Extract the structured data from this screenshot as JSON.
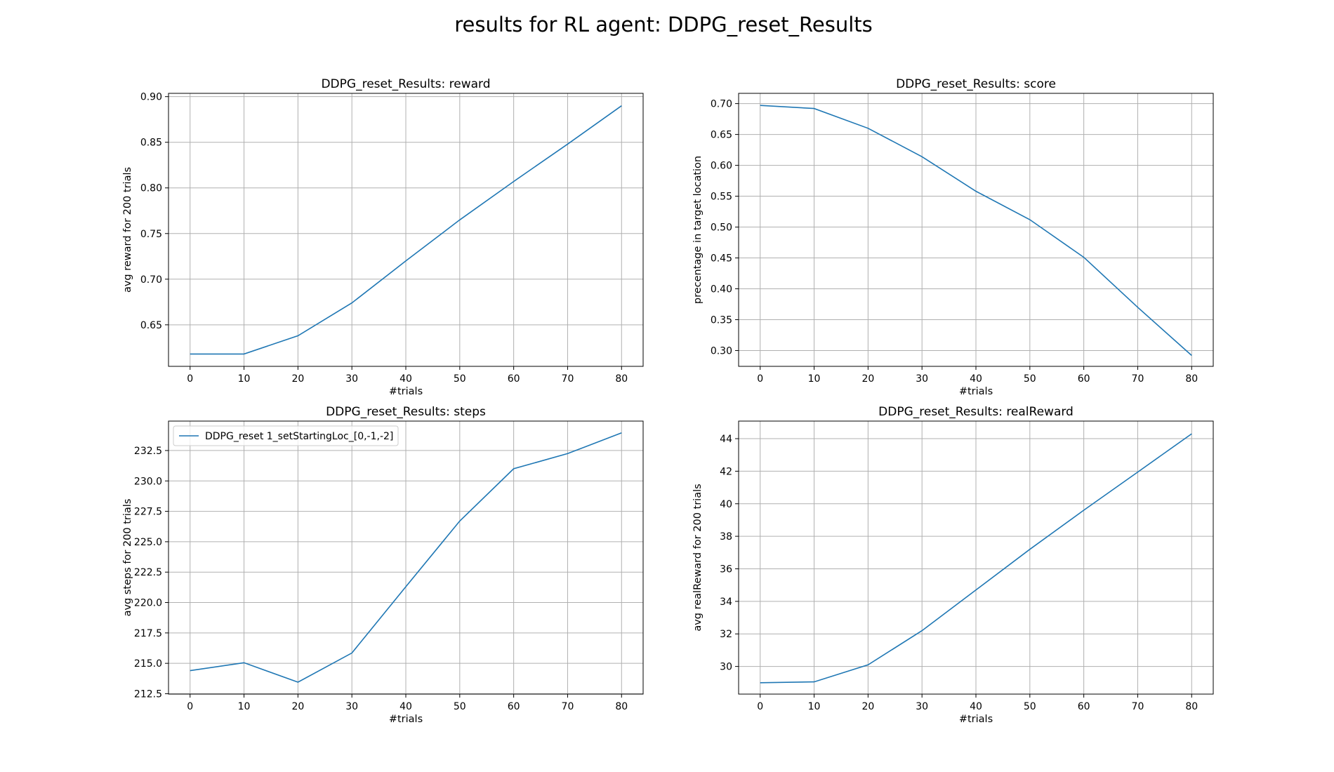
{
  "figure": {
    "suptitle": "results for RL agent: DDPG_reset_Results",
    "line_color": "#1f77b4",
    "grid_color": "#b0b0b0"
  },
  "chart_data": [
    {
      "type": "line",
      "title": "DDPG_reset_Results: reward",
      "xlabel": "#trials",
      "ylabel": "avg reward for 200 trials",
      "x": [
        0,
        10,
        20,
        30,
        40,
        50,
        60,
        70,
        80
      ],
      "series": [
        {
          "values": [
            0.618,
            0.618,
            0.638,
            0.674,
            0.72,
            0.765,
            0.807,
            0.848,
            0.89
          ]
        }
      ],
      "xticks": [
        "0",
        "10",
        "20",
        "30",
        "40",
        "50",
        "60",
        "70",
        "80"
      ],
      "yticks": [
        "0.65",
        "0.70",
        "0.75",
        "0.80",
        "0.85",
        "0.90"
      ],
      "xlim": [
        -4,
        84
      ],
      "ylim": [
        0.6045,
        0.9036
      ],
      "grid": true,
      "legend": null
    },
    {
      "type": "line",
      "title": "DDPG_reset_Results: score",
      "xlabel": "#trials",
      "ylabel": "precentage in target location",
      "x": [
        0,
        10,
        20,
        30,
        40,
        50,
        60,
        70,
        80
      ],
      "series": [
        {
          "values": [
            0.697,
            0.692,
            0.66,
            0.614,
            0.558,
            0.512,
            0.451,
            0.37,
            0.292
          ]
        }
      ],
      "xticks": [
        "0",
        "10",
        "20",
        "30",
        "40",
        "50",
        "60",
        "70",
        "80"
      ],
      "yticks": [
        "0.30",
        "0.35",
        "0.40",
        "0.45",
        "0.50",
        "0.55",
        "0.60",
        "0.65",
        "0.70"
      ],
      "xlim": [
        -4,
        84
      ],
      "ylim": [
        0.2744,
        0.7166
      ],
      "grid": true,
      "legend": null
    },
    {
      "type": "line",
      "title": "DDPG_reset_Results: steps",
      "xlabel": "#trials",
      "ylabel": "avg steps for 200 trials",
      "x": [
        0,
        10,
        20,
        30,
        40,
        50,
        60,
        70,
        80
      ],
      "series": [
        {
          "name": "DDPG_reset 1_setStartingLoc_[0,-1,-2]",
          "values": [
            214.4,
            215.05,
            213.45,
            215.85,
            221.3,
            226.7,
            231.0,
            232.25,
            233.95
          ]
        }
      ],
      "xticks": [
        "0",
        "10",
        "20",
        "30",
        "40",
        "50",
        "60",
        "70",
        "80"
      ],
      "yticks": [
        "212.5",
        "215.0",
        "217.5",
        "220.0",
        "222.5",
        "225.0",
        "227.5",
        "230.0",
        "232.5"
      ],
      "xlim": [
        -4,
        84
      ],
      "ylim": [
        212.47,
        234.92
      ],
      "grid": true,
      "legend": "upper left"
    },
    {
      "type": "line",
      "title": "DDPG_reset_Results: realReward",
      "xlabel": "#trials",
      "ylabel": "avg realReward for 200 trials",
      "x": [
        0,
        10,
        20,
        30,
        40,
        50,
        60,
        70,
        80
      ],
      "series": [
        {
          "values": [
            29.0,
            29.05,
            30.1,
            32.2,
            34.7,
            37.2,
            39.6,
            41.95,
            44.3
          ]
        }
      ],
      "xticks": [
        "0",
        "10",
        "20",
        "30",
        "40",
        "50",
        "60",
        "70",
        "80"
      ],
      "yticks": [
        "30",
        "32",
        "34",
        "36",
        "38",
        "40",
        "42",
        "44"
      ],
      "xlim": [
        -4,
        84
      ],
      "ylim": [
        28.3,
        45.08
      ],
      "grid": true,
      "legend": null
    }
  ]
}
